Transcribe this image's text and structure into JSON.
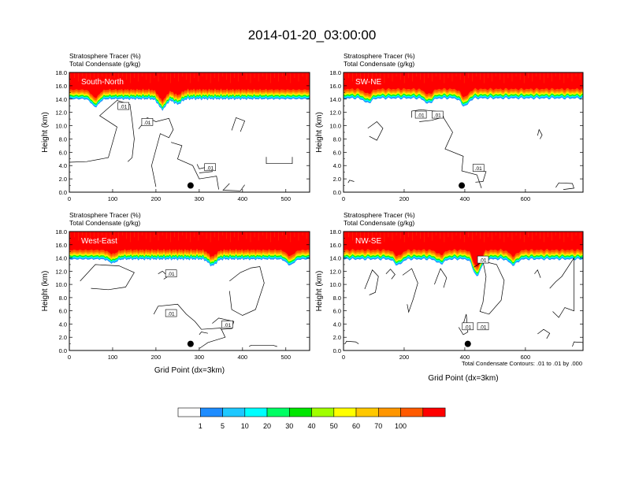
{
  "title": "2014-01-20_03:00:00",
  "shared": {
    "label_tracer": "Stratosphere Tracer   (%)",
    "label_condensate": "Total Condensate   (g/kg)",
    "ylabel": "Height (km)",
    "xlabel": "Grid Point (dx=3km)",
    "contour_note": "Total Condensate Contours: .01 to .01 by .000"
  },
  "chart_data": [
    {
      "type": "heatmap",
      "title": "Stratosphere Tracer   (%) / Total Condensate   (g/kg)",
      "panel_label": "South-North",
      "xlabel": "",
      "ylabel": "Height (km)",
      "xlim": [
        0,
        555
      ],
      "ylim": [
        0,
        18
      ],
      "x_ticks": [
        0,
        100,
        200,
        300,
        400,
        500
      ],
      "y_ticks": [
        "0.0",
        "2.0",
        "4.0",
        "6.0",
        "8.0",
        "10.0",
        "12.0",
        "14.0",
        "16.0",
        "18.0"
      ],
      "contour_labels": [
        {
          "text": ".01",
          "x": 125,
          "y": 12.9
        },
        {
          "text": ".01",
          "x": 180,
          "y": 10.5
        },
        {
          "text": ".01",
          "x": 325,
          "y": 3.7
        }
      ],
      "marker": {
        "x": 280,
        "y": 1.0
      },
      "tracer_base_km": 15.4,
      "dips": [
        {
          "x": 60,
          "depth": 1.2
        },
        {
          "x": 215,
          "depth": 1.6
        },
        {
          "x": 250,
          "depth": 0.8
        }
      ]
    },
    {
      "type": "heatmap",
      "title": "Stratosphere Tracer   (%) / Total Condensate   (g/kg)",
      "panel_label": "SW-NE",
      "xlabel": "",
      "ylabel": "Height (km)",
      "xlim": [
        0,
        790
      ],
      "ylim": [
        0,
        18
      ],
      "x_ticks": [
        0,
        200,
        400,
        600
      ],
      "y_ticks": [
        "0.0",
        "2.0",
        "4.0",
        "6.0",
        "8.0",
        "10.0",
        "12.0",
        "14.0",
        "16.0",
        "18.0"
      ],
      "contour_labels": [
        {
          "text": ".01",
          "x": 255,
          "y": 11.6
        },
        {
          "text": ".01",
          "x": 310,
          "y": 11.6
        },
        {
          "text": ".01",
          "x": 445,
          "y": 3.6
        }
      ],
      "marker": {
        "x": 390,
        "y": 1.0
      },
      "tracer_base_km": 15.5,
      "dips": [
        {
          "x": 80,
          "depth": 0.7
        },
        {
          "x": 280,
          "depth": 0.8
        },
        {
          "x": 400,
          "depth": 1.2
        }
      ]
    },
    {
      "type": "heatmap",
      "title": "Stratosphere Tracer   (%) / Total Condensate   (g/kg)",
      "panel_label": "West-East",
      "xlabel": "Grid Point (dx=3km)",
      "ylabel": "Height (km)",
      "xlim": [
        0,
        555
      ],
      "ylim": [
        0,
        18
      ],
      "x_ticks": [
        0,
        100,
        200,
        300,
        400,
        500
      ],
      "y_ticks": [
        "0.0",
        "2.0",
        "4.0",
        "6.0",
        "8.0",
        "10.0",
        "12.0",
        "14.0",
        "16.0",
        "18.0"
      ],
      "contour_labels": [
        {
          "text": ".01",
          "x": 235,
          "y": 11.6
        },
        {
          "text": ".01",
          "x": 235,
          "y": 5.6
        },
        {
          "text": ".01",
          "x": 365,
          "y": 3.9
        }
      ],
      "marker": {
        "x": 280,
        "y": 1.0
      },
      "tracer_base_km": 15.2,
      "dips": [
        {
          "x": 100,
          "depth": 0.6
        },
        {
          "x": 330,
          "depth": 1.0
        },
        {
          "x": 510,
          "depth": 0.9
        }
      ]
    },
    {
      "type": "heatmap",
      "title": "Stratosphere Tracer   (%) / Total Condensate   (g/kg)",
      "panel_label": "NW-SE",
      "xlabel": "Grid Point (dx=3km)",
      "ylabel": "Height (km)",
      "xlim": [
        0,
        790
      ],
      "ylim": [
        0,
        18
      ],
      "x_ticks": [
        0,
        200,
        400,
        600
      ],
      "y_ticks": [
        "0.0",
        "2.0",
        "4.0",
        "6.0",
        "8.0",
        "10.0",
        "12.0",
        "14.0",
        "16.0",
        "18.0"
      ],
      "contour_labels": [
        {
          "text": ".01",
          "x": 460,
          "y": 13.7
        },
        {
          "text": ".01",
          "x": 410,
          "y": 3.6
        },
        {
          "text": ".01",
          "x": 460,
          "y": 3.6
        }
      ],
      "marker": {
        "x": 410,
        "y": 1.0
      },
      "tracer_base_km": 15.2,
      "dips": [
        {
          "x": 180,
          "depth": 0.9
        },
        {
          "x": 320,
          "depth": 0.7
        },
        {
          "x": 440,
          "depth": 2.6
        },
        {
          "x": 560,
          "depth": 0.9
        }
      ]
    }
  ],
  "colorbar": {
    "labels": [
      "1",
      "5",
      "10",
      "20",
      "30",
      "40",
      "50",
      "60",
      "70",
      "100"
    ],
    "colors": [
      "#ffffff",
      "#1e8cff",
      "#1ec8ff",
      "#00ffff",
      "#00ff64",
      "#00e600",
      "#a0ff00",
      "#ffff00",
      "#ffc800",
      "#ff9600",
      "#ff5a00",
      "#ff0000"
    ]
  }
}
